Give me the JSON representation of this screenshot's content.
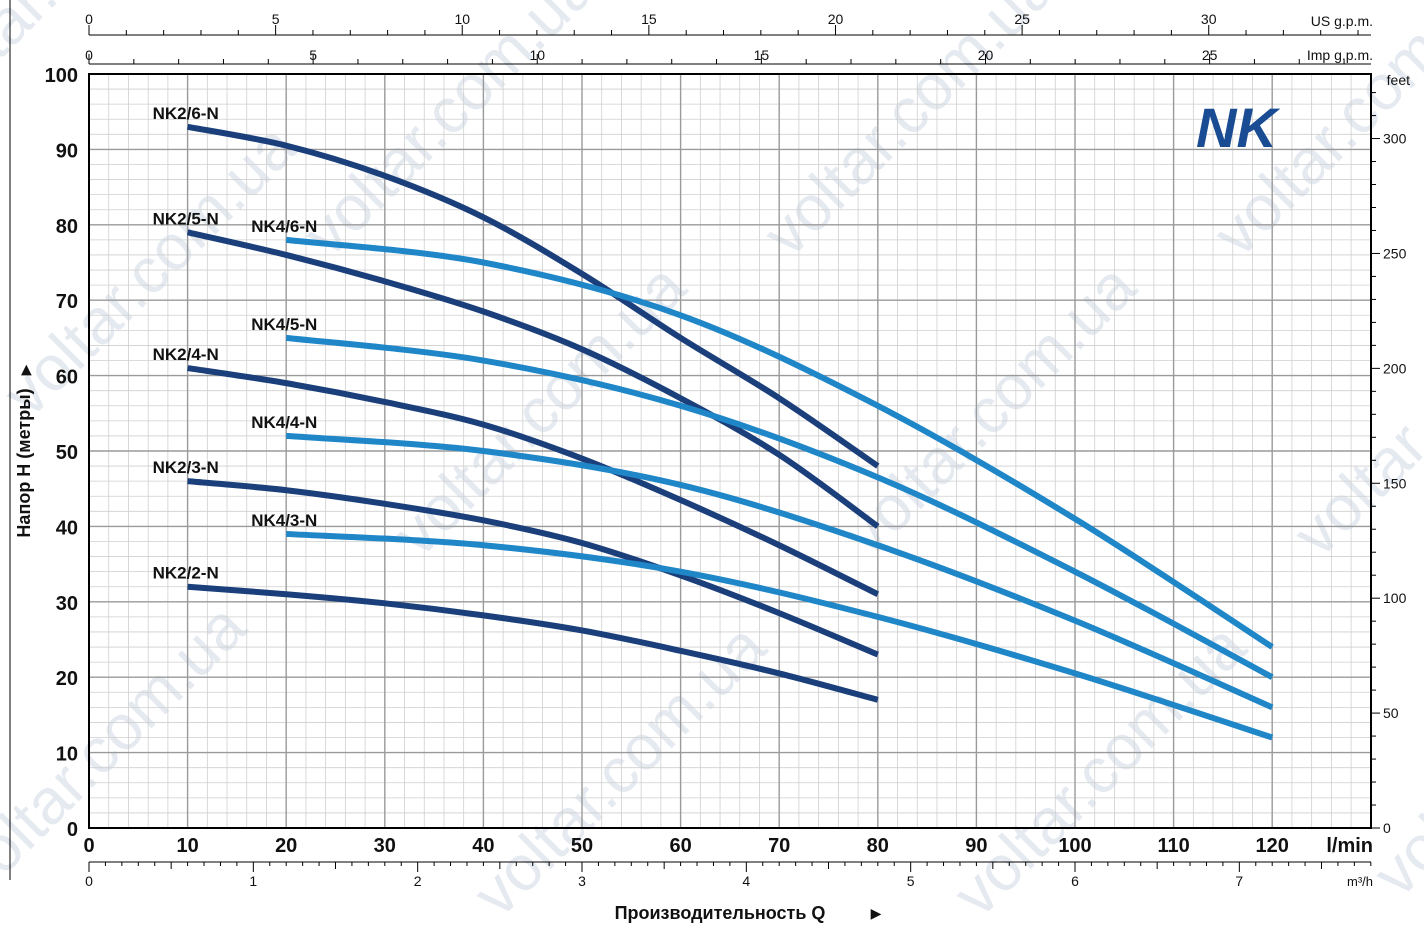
{
  "chart_data": {
    "type": "line",
    "logo": "NK",
    "xlabel": "Производительность Q",
    "ylabel": "Напор H (метры)",
    "units": {
      "x_main": "l/min",
      "x_m3h": "m³/h",
      "x_us": "US g.p.m.",
      "x_imp": "Imp g.p.m.",
      "y_feet": "feet"
    },
    "xlim": [
      0,
      130
    ],
    "ylim": [
      0,
      100
    ],
    "x_ticks": [
      0,
      10,
      20,
      30,
      40,
      50,
      60,
      70,
      80,
      90,
      100,
      110,
      120
    ],
    "y_ticks": [
      0,
      10,
      20,
      30,
      40,
      50,
      60,
      70,
      80,
      90,
      100
    ],
    "m3h_ticks": [
      0,
      1,
      2,
      3,
      4,
      5,
      6,
      7
    ],
    "us_gpm_ticks": [
      0,
      5,
      10,
      15,
      20,
      25,
      30
    ],
    "imp_gpm_ticks": [
      0,
      5,
      10,
      15,
      20,
      25
    ],
    "feet_ticks": [
      0,
      50,
      100,
      150,
      200,
      250,
      300
    ],
    "grid": true,
    "series": [
      {
        "name": "NK2/6-N",
        "color": "#1b3f7a",
        "x": [
          10,
          20,
          30,
          40,
          50,
          60,
          70,
          80
        ],
        "y": [
          93,
          90.5,
          86.5,
          81,
          73.5,
          65,
          57,
          48
        ]
      },
      {
        "name": "NK2/5-N",
        "color": "#1b3f7a",
        "x": [
          10,
          20,
          30,
          40,
          50,
          60,
          70,
          80
        ],
        "y": [
          79,
          76,
          72.5,
          68.5,
          63.5,
          57,
          49.5,
          40
        ]
      },
      {
        "name": "NK2/4-N",
        "color": "#1b3f7a",
        "x": [
          10,
          20,
          30,
          40,
          50,
          60,
          70,
          80
        ],
        "y": [
          61,
          59,
          56.5,
          53.5,
          49,
          43.5,
          37.5,
          31
        ]
      },
      {
        "name": "NK2/3-N",
        "color": "#1b3f7a",
        "x": [
          10,
          20,
          30,
          40,
          50,
          60,
          70,
          80
        ],
        "y": [
          46,
          44.8,
          43,
          40.8,
          37.8,
          33.5,
          28.5,
          23
        ]
      },
      {
        "name": "NK2/2-N",
        "color": "#1b3f7a",
        "x": [
          10,
          20,
          30,
          40,
          50,
          60,
          70,
          80
        ],
        "y": [
          32,
          31,
          29.8,
          28.2,
          26.2,
          23.5,
          20.5,
          17
        ]
      },
      {
        "name": "NK4/6-N",
        "color": "#1f86c8",
        "x": [
          20,
          40,
          60,
          80,
          100,
          120
        ],
        "y": [
          78,
          75,
          68,
          56,
          41,
          24
        ]
      },
      {
        "name": "NK4/5-N",
        "color": "#1f86c8",
        "x": [
          20,
          40,
          60,
          80,
          100,
          120
        ],
        "y": [
          65,
          62,
          56,
          46.5,
          34,
          20
        ]
      },
      {
        "name": "NK4/4-N",
        "color": "#1f86c8",
        "x": [
          20,
          40,
          60,
          80,
          100,
          120
        ],
        "y": [
          52,
          50,
          45.5,
          37.5,
          27.5,
          16
        ]
      },
      {
        "name": "NK4/3-N",
        "color": "#1f86c8",
        "x": [
          20,
          40,
          60,
          80,
          100,
          120
        ],
        "y": [
          39,
          37.5,
          34,
          28,
          20.5,
          12
        ]
      }
    ]
  },
  "watermark": {
    "text": "voltar.com.ua",
    "color": "#cfd8e6"
  }
}
